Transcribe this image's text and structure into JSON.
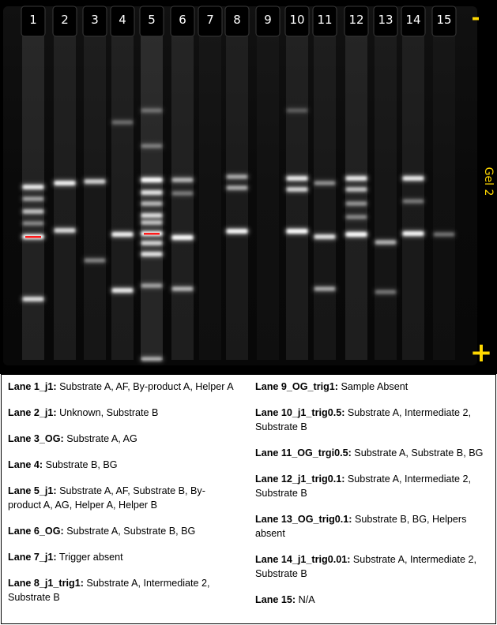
{
  "gel": {
    "title": "Gel 2",
    "minus_label": "-",
    "plus_label": "+",
    "lane_labels": [
      "1",
      "2",
      "3",
      "4",
      "5",
      "6",
      "7",
      "8",
      "9",
      "10",
      "11",
      "12",
      "13",
      "14",
      "15"
    ]
  },
  "legend": {
    "left": [
      {
        "lane": "Lane 1_j1:",
        "content": "Substrate A, AF, By-product A, Helper A"
      },
      {
        "lane": "Lane 2_j1:",
        "content": "Unknown, Substrate B"
      },
      {
        "lane": "Lane 3_OG:",
        "content": "Substrate A, AG"
      },
      {
        "lane": "Lane 4:",
        "content": "Substrate B, BG"
      },
      {
        "lane": "Lane 5_j1:",
        "content": "Substrate A, AF, Substrate B, By-product A, AG, Helper A, Helper B"
      },
      {
        "lane": "Lane 6_OG:",
        "content": "Substrate A, Substrate B, BG"
      },
      {
        "lane": "Lane 7_j1:",
        "content": "Trigger absent"
      },
      {
        "lane": "Lane 8_j1_trig1:",
        "content": "Substrate A, Intermediate 2, Substrate B"
      }
    ],
    "right": [
      {
        "lane": "Lane 9_OG_trig1:",
        "content": "Sample Absent"
      },
      {
        "lane": "Lane 10_j1_trig0.5:",
        "content": "Substrate A, Intermediate 2, Substrate B"
      },
      {
        "lane": "Lane 11_OG_trgi0.5:",
        "content": "Substrate A, Substrate B, BG"
      },
      {
        "lane": "Lane 12_j1_trig0.1:",
        "content": "Substrate A, Intermediate 2, Substrate B"
      },
      {
        "lane": "Lane 13_OG_trig0.1:",
        "content": "Substrate B, BG, Helpers absent"
      },
      {
        "lane": "Lane 14_j1_trig0.01:",
        "content": "Substrate A, Intermediate 2, Substrate B"
      },
      {
        "lane": "Lane 15:",
        "content": "N/A"
      }
    ]
  },
  "colors": {
    "gel_background": "#000000",
    "band": "#ffffff",
    "saturated_band": "#ff1a1a",
    "annotation_yellow": "#ffd800"
  }
}
